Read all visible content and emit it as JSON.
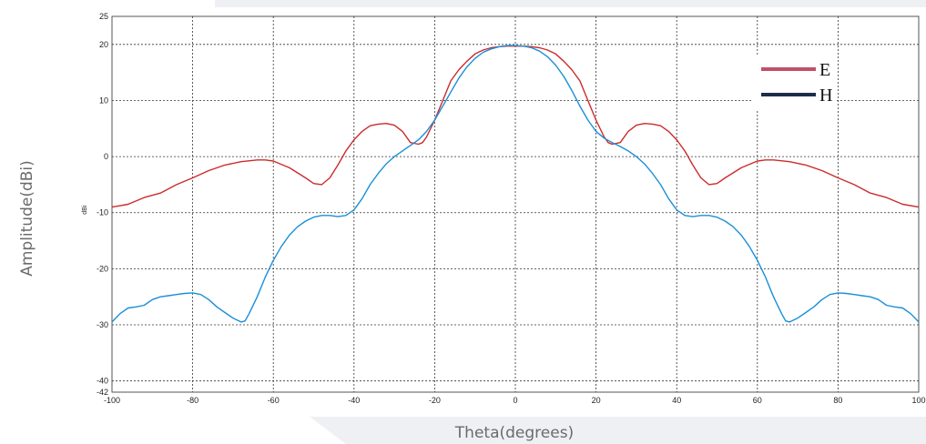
{
  "chart_data": {
    "type": "line",
    "xlabel": "Theta(degrees)",
    "ylabel": "Amplitude(dBi)",
    "unit_label": "dBi",
    "xlim": [
      -100,
      100
    ],
    "ylim": [
      -42,
      25
    ],
    "x_ticks": [
      -100,
      -80,
      -60,
      -40,
      -20,
      0,
      20,
      40,
      60,
      80,
      100
    ],
    "y_ticks": [
      -42,
      -40,
      -30,
      -20,
      -10,
      0,
      10,
      20,
      25
    ],
    "grid": true,
    "legend_position": "top-right",
    "series": [
      {
        "name": "E",
        "color": "#cc2b2b",
        "legend_color": "#c0506a",
        "x": [
          -100,
          -96,
          -92,
          -88,
          -84,
          -80,
          -76,
          -72,
          -68,
          -64,
          -62,
          -60,
          -56,
          -52,
          -50,
          -48,
          -46,
          -44,
          -42,
          -40,
          -38,
          -36,
          -34,
          -32,
          -30,
          -28,
          -26,
          -24,
          -23,
          -22,
          -20,
          -18,
          -16,
          -14,
          -12,
          -10,
          -8,
          -6,
          -4,
          -2,
          0,
          2,
          4,
          6,
          8,
          10,
          12,
          14,
          16,
          18,
          20,
          22,
          23,
          24,
          26,
          28,
          30,
          32,
          34,
          36,
          38,
          40,
          42,
          44,
          46,
          48,
          50,
          52,
          56,
          60,
          62,
          64,
          68,
          72,
          76,
          80,
          84,
          88,
          92,
          96,
          100
        ],
        "y": [
          -9,
          -8.5,
          -7.3,
          -6.5,
          -5,
          -3.8,
          -2.5,
          -1.5,
          -0.9,
          -0.6,
          -0.6,
          -0.8,
          -2,
          -3.8,
          -4.8,
          -5,
          -3.8,
          -1.5,
          1,
          3,
          4.5,
          5.5,
          5.8,
          5.9,
          5.6,
          4.5,
          2.5,
          2.2,
          2.5,
          3.5,
          6.5,
          10,
          13.5,
          15.5,
          17,
          18.3,
          19,
          19.4,
          19.6,
          19.7,
          19.7,
          19.7,
          19.6,
          19.4,
          19,
          18.3,
          17,
          15.5,
          13.5,
          10,
          6.5,
          3.5,
          2.5,
          2.2,
          2.5,
          4.5,
          5.6,
          5.9,
          5.8,
          5.5,
          4.5,
          3,
          1,
          -1.5,
          -3.8,
          -5,
          -4.8,
          -3.8,
          -2,
          -0.8,
          -0.6,
          -0.6,
          -0.9,
          -1.5,
          -2.5,
          -3.8,
          -5,
          -6.5,
          -7.3,
          -8.5,
          -9
        ]
      },
      {
        "name": "H",
        "color": "#1a8fd8",
        "legend_color": "#1c2e4a",
        "x": [
          -100,
          -98,
          -96,
          -94,
          -92,
          -90,
          -88,
          -86,
          -84,
          -82,
          -80,
          -78,
          -76,
          -74,
          -72,
          -70,
          -68,
          -67,
          -66,
          -64,
          -62,
          -60,
          -58,
          -56,
          -54,
          -52,
          -50,
          -48,
          -46,
          -44,
          -42,
          -40,
          -38,
          -36,
          -34,
          -32,
          -30,
          -28,
          -26,
          -24,
          -22,
          -20,
          -18,
          -16,
          -14,
          -12,
          -10,
          -8,
          -6,
          -4,
          -2,
          0,
          2,
          4,
          6,
          8,
          10,
          12,
          14,
          16,
          18,
          20,
          22,
          24,
          26,
          28,
          30,
          32,
          34,
          36,
          38,
          40,
          42,
          44,
          46,
          48,
          50,
          52,
          54,
          56,
          58,
          60,
          62,
          64,
          66,
          67,
          68,
          70,
          72,
          74,
          76,
          78,
          80,
          82,
          84,
          86,
          88,
          90,
          92,
          94,
          96,
          98,
          100
        ],
        "y": [
          -29.5,
          -28,
          -27,
          -26.8,
          -26.5,
          -25.5,
          -25,
          -24.8,
          -24.6,
          -24.4,
          -24.3,
          -24.6,
          -25.5,
          -26.8,
          -27.8,
          -28.8,
          -29.5,
          -29.3,
          -28,
          -25,
          -21.5,
          -18.5,
          -16,
          -14,
          -12.5,
          -11.5,
          -10.8,
          -10.5,
          -10.5,
          -10.7,
          -10.5,
          -9.5,
          -7.5,
          -5,
          -3,
          -1.3,
          0,
          1,
          2,
          3,
          4.5,
          6.5,
          9,
          11.5,
          14,
          16,
          17.5,
          18.6,
          19.2,
          19.6,
          19.8,
          19.8,
          19.7,
          19.4,
          18.8,
          17.8,
          16.3,
          14.3,
          11.8,
          9,
          6.5,
          4.5,
          3.3,
          2.5,
          1.8,
          1,
          0,
          -1.3,
          -3,
          -5,
          -7.5,
          -9.5,
          -10.5,
          -10.7,
          -10.5,
          -10.5,
          -10.8,
          -11.5,
          -12.5,
          -14,
          -16,
          -18.5,
          -21.5,
          -25,
          -28,
          -29.3,
          -29.5,
          -28.8,
          -27.8,
          -26.8,
          -25.5,
          -24.6,
          -24.3,
          -24.4,
          -24.6,
          -24.8,
          -25,
          -25.5,
          -26.5,
          -26.8,
          -27,
          -28,
          -29.5
        ]
      }
    ]
  }
}
